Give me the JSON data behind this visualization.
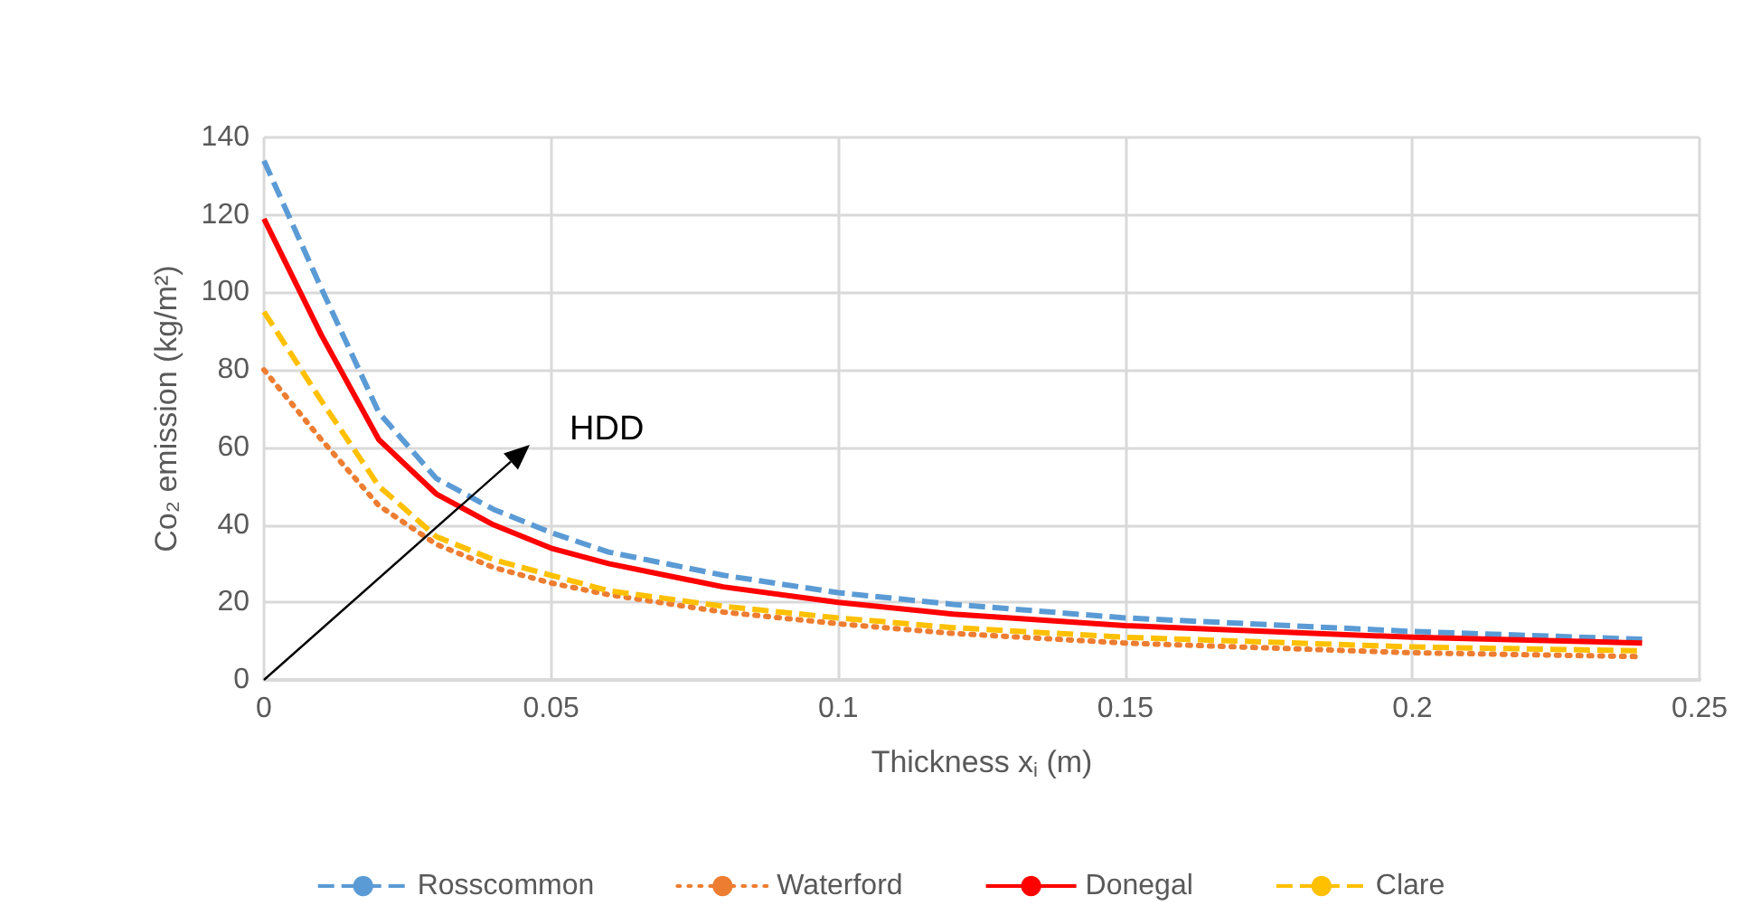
{
  "chart_data": {
    "type": "line",
    "xlabel": "Thickness x$_{i}$ (m)",
    "ylabel": "Co₂ emission (kg/m²)",
    "xlim": [
      0,
      0.25
    ],
    "xticks": [
      0,
      0.05,
      0.1,
      0.15,
      0.2,
      0.25
    ],
    "ylim": [
      0,
      140
    ],
    "yticks": [
      0,
      20,
      40,
      60,
      80,
      100,
      120,
      140
    ],
    "grid": true,
    "legend": "bottom",
    "marker": "none",
    "annotations": [
      "HDD"
    ],
    "x": [
      0,
      0.01,
      0.02,
      0.03,
      0.04,
      0.05,
      0.06,
      0.08,
      0.1,
      0.12,
      0.15,
      0.2,
      0.24
    ],
    "series": [
      {
        "name": "Rosscommon",
        "color": "#5b9bd5",
        "line_style": "dashed",
        "values": [
          134,
          101,
          69,
          52,
          44,
          38,
          33,
          27,
          22.5,
          19.5,
          16,
          12.5,
          10.5
        ]
      },
      {
        "name": "Waterford",
        "color": "#ed7d31",
        "line_style": "dotted",
        "values": [
          80,
          62,
          45,
          35,
          29,
          25,
          22,
          17.5,
          14.5,
          12,
          9.5,
          7,
          6
        ]
      },
      {
        "name": "Donegal",
        "color": "#ff0000",
        "line_style": "solid",
        "values": [
          119,
          89,
          62,
          48,
          40,
          34,
          30,
          24,
          20,
          17,
          14,
          11,
          9.5
        ]
      },
      {
        "name": "Clare",
        "color": "#ffc000",
        "line_style": "dashed",
        "values": [
          95,
          72,
          50,
          37,
          31,
          27,
          23,
          19,
          16,
          13.5,
          11,
          8.5,
          7.5
        ]
      }
    ]
  }
}
